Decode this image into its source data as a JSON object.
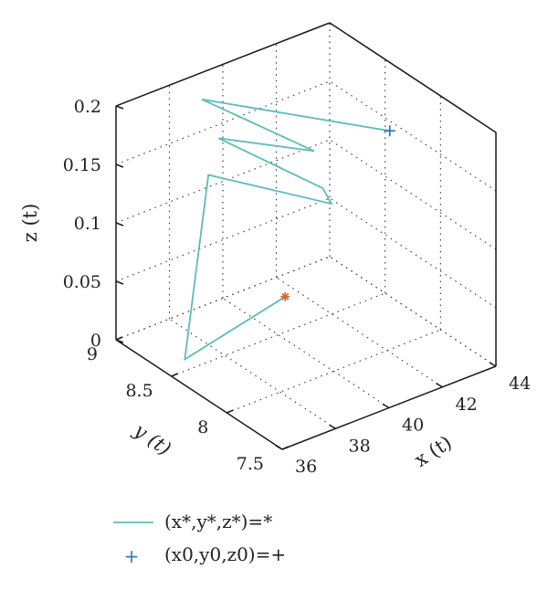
{
  "chart_data": {
    "type": "line3d",
    "xlabel": "x (t)",
    "ylabel": "y (t)",
    "zlabel": "z (t)",
    "xlim": [
      36,
      44
    ],
    "ylim": [
      7.5,
      9
    ],
    "zlim": [
      0,
      0.2
    ],
    "x_ticks": [
      "36",
      "38",
      "40",
      "42",
      "44"
    ],
    "y_ticks": [
      "7.5",
      "8",
      "8.5",
      "9"
    ],
    "z_ticks": [
      "0",
      "0.05",
      "0.1",
      "0.15",
      "0.2"
    ],
    "grid": true,
    "series": [
      {
        "name": "(x*,y*,z*)=*",
        "type": "line",
        "color": "#5bbdb9",
        "points": [
          [
            42.1,
            8.0,
            0.187
          ],
          [
            38.8,
            8.9,
            0.187
          ],
          [
            40.1,
            8.2,
            0.175
          ],
          [
            38.6,
            8.7,
            0.168
          ],
          [
            39.6,
            8.0,
            0.16
          ],
          [
            39.5,
            7.9,
            0.154
          ],
          [
            37.8,
            8.6,
            0.15
          ],
          [
            36.5,
            8.5,
            0.01
          ],
          [
            38.6,
            8.1,
            0.07
          ]
        ]
      },
      {
        "name": "(x0,y0,z0)=+",
        "type": "marker",
        "marker": "+",
        "color": "#2f7ab8",
        "points": [
          [
            42.1,
            8.0,
            0.187
          ]
        ]
      },
      {
        "name": "*",
        "type": "marker",
        "marker": "*",
        "color": "#d9622b",
        "points": [
          [
            38.6,
            8.1,
            0.07
          ]
        ]
      }
    ],
    "legend": {
      "position": "bottom-left",
      "entries": [
        {
          "label": "(x*,y*,z*)=*",
          "symbol": "line",
          "color": "#5bbdb9"
        },
        {
          "label": "(x0,y0,z0)=+",
          "symbol": "+",
          "color": "#2f7ab8"
        }
      ]
    }
  }
}
